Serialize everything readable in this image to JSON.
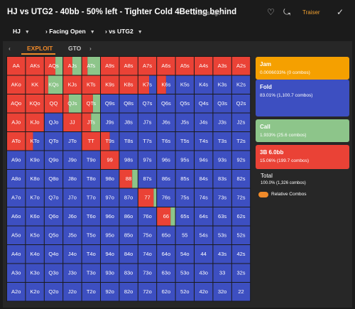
{
  "header": {
    "title": "HJ vs UTG2 - 40bb - 50% left - Tighter Cold 4Betting behind",
    "time": "2 days ago",
    "user_button": "Traiser"
  },
  "breadcrumb": [
    "HJ",
    "Facing Open",
    "vs UTG2"
  ],
  "tabs": [
    "EXPLOIT",
    "GTO"
  ],
  "grid": {
    "hands": [
      [
        "AA",
        "AKs",
        "AQs",
        "AJs",
        "ATs",
        "A9s",
        "A8s",
        "A7s",
        "A6s",
        "A5s",
        "A4s",
        "A3s",
        "A2s"
      ],
      [
        "AKo",
        "KK",
        "KQs",
        "KJs",
        "KTs",
        "K9s",
        "K8s",
        "K7s",
        "K6s",
        "K5s",
        "K4s",
        "K3s",
        "K2s"
      ],
      [
        "AQo",
        "KQo",
        "QQ",
        "QJs",
        "QTs",
        "Q9s",
        "Q8s",
        "Q7s",
        "Q6s",
        "Q5s",
        "Q4s",
        "Q3s",
        "Q2s"
      ],
      [
        "AJo",
        "KJo",
        "QJo",
        "JJ",
        "JTs",
        "J9s",
        "J8s",
        "J7s",
        "J6s",
        "J5s",
        "J4s",
        "J3s",
        "J2s"
      ],
      [
        "ATo",
        "KTo",
        "QTo",
        "JTo",
        "TT",
        "T9s",
        "T8s",
        "T7s",
        "T6s",
        "T5s",
        "T4s",
        "T3s",
        "T2s"
      ],
      [
        "A9o",
        "K9o",
        "Q9o",
        "J9o",
        "T9o",
        "99",
        "98s",
        "97s",
        "96s",
        "95s",
        "94s",
        "93s",
        "92s"
      ],
      [
        "A8o",
        "K8o",
        "Q8o",
        "J8o",
        "T8o",
        "98o",
        "88",
        "87s",
        "86s",
        "85s",
        "84s",
        "83s",
        "82s"
      ],
      [
        "A7o",
        "K7o",
        "Q7o",
        "J7o",
        "T7o",
        "97o",
        "87o",
        "77",
        "76s",
        "75s",
        "74s",
        "73s",
        "72s"
      ],
      [
        "A6o",
        "K6o",
        "Q6o",
        "J6o",
        "T6o",
        "96o",
        "86o",
        "76o",
        "66",
        "65s",
        "64s",
        "63s",
        "62s"
      ],
      [
        "A5o",
        "K5o",
        "Q5o",
        "J5o",
        "T5o",
        "95o",
        "85o",
        "75o",
        "65o",
        "55",
        "54s",
        "53s",
        "52s"
      ],
      [
        "A4o",
        "K4o",
        "Q4o",
        "J4o",
        "T4o",
        "94o",
        "84o",
        "74o",
        "64o",
        "54o",
        "44",
        "43s",
        "42s"
      ],
      [
        "A3o",
        "K3o",
        "Q3o",
        "J3o",
        "T3o",
        "93o",
        "83o",
        "73o",
        "63o",
        "53o",
        "43o",
        "33",
        "32s"
      ],
      [
        "A2o",
        "K2o",
        "Q2o",
        "J2o",
        "T2o",
        "92o",
        "82o",
        "72o",
        "62o",
        "52o",
        "42o",
        "32o",
        "22"
      ]
    ],
    "raise": [
      [
        100,
        100,
        60,
        50,
        30,
        100,
        100,
        100,
        100,
        100,
        100,
        100,
        100
      ],
      [
        100,
        100,
        20,
        100,
        100,
        100,
        100,
        60,
        50,
        0,
        0,
        0,
        0
      ],
      [
        100,
        100,
        100,
        30,
        60,
        0,
        0,
        0,
        0,
        0,
        0,
        0,
        0
      ],
      [
        100,
        100,
        0,
        100,
        50,
        0,
        0,
        0,
        0,
        0,
        0,
        0,
        0
      ],
      [
        100,
        40,
        0,
        0,
        100,
        50,
        0,
        0,
        0,
        0,
        0,
        0,
        0
      ],
      [
        0,
        0,
        0,
        0,
        0,
        100,
        0,
        0,
        0,
        0,
        0,
        0,
        0
      ],
      [
        0,
        0,
        0,
        0,
        0,
        0,
        70,
        0,
        0,
        0,
        0,
        0,
        0
      ],
      [
        0,
        0,
        0,
        0,
        0,
        0,
        0,
        85,
        0,
        0,
        0,
        0,
        0
      ],
      [
        0,
        0,
        0,
        0,
        0,
        0,
        0,
        0,
        75,
        0,
        0,
        0,
        0
      ],
      [
        0,
        0,
        0,
        0,
        0,
        0,
        0,
        0,
        0,
        0,
        0,
        0,
        0
      ],
      [
        0,
        0,
        0,
        0,
        0,
        0,
        0,
        0,
        0,
        0,
        0,
        0,
        0
      ],
      [
        0,
        0,
        0,
        0,
        0,
        0,
        0,
        0,
        0,
        0,
        0,
        0,
        0
      ],
      [
        0,
        0,
        0,
        0,
        0,
        0,
        0,
        0,
        0,
        0,
        0,
        0,
        0
      ]
    ],
    "call": [
      [
        0,
        0,
        40,
        50,
        70,
        0,
        0,
        0,
        0,
        0,
        0,
        0,
        0
      ],
      [
        0,
        0,
        80,
        0,
        0,
        0,
        0,
        0,
        0,
        0,
        0,
        0,
        0
      ],
      [
        0,
        0,
        0,
        70,
        40,
        0,
        0,
        0,
        0,
        0,
        0,
        0,
        0
      ],
      [
        0,
        0,
        0,
        0,
        50,
        0,
        0,
        0,
        0,
        0,
        0,
        0,
        0
      ],
      [
        0,
        0,
        0,
        0,
        0,
        0,
        0,
        0,
        0,
        0,
        0,
        0,
        0
      ],
      [
        0,
        0,
        0,
        0,
        0,
        0,
        0,
        0,
        0,
        0,
        0,
        0,
        0
      ],
      [
        0,
        0,
        0,
        0,
        0,
        0,
        30,
        0,
        0,
        0,
        0,
        0,
        0
      ],
      [
        0,
        0,
        0,
        0,
        0,
        0,
        0,
        15,
        0,
        0,
        0,
        0,
        0
      ],
      [
        0,
        0,
        0,
        0,
        0,
        0,
        0,
        0,
        25,
        0,
        0,
        0,
        0
      ],
      [
        0,
        0,
        0,
        0,
        0,
        0,
        0,
        0,
        0,
        0,
        0,
        0,
        0
      ],
      [
        0,
        0,
        0,
        0,
        0,
        0,
        0,
        0,
        0,
        0,
        0,
        0,
        0
      ],
      [
        0,
        0,
        0,
        0,
        0,
        0,
        0,
        0,
        0,
        0,
        0,
        0,
        0
      ],
      [
        0,
        0,
        0,
        0,
        0,
        0,
        0,
        0,
        0,
        0,
        0,
        0,
        0
      ]
    ],
    "fold": [
      [
        0,
        0,
        0,
        0,
        0,
        0,
        0,
        0,
        0,
        0,
        0,
        0,
        0
      ],
      [
        0,
        0,
        0,
        0,
        0,
        0,
        0,
        40,
        50,
        100,
        100,
        100,
        100
      ],
      [
        0,
        0,
        0,
        0,
        0,
        100,
        100,
        100,
        100,
        100,
        100,
        100,
        100
      ],
      [
        0,
        0,
        100,
        0,
        0,
        100,
        100,
        100,
        100,
        100,
        100,
        100,
        100
      ],
      [
        0,
        60,
        100,
        100,
        0,
        50,
        100,
        100,
        100,
        100,
        100,
        100,
        100
      ],
      [
        100,
        100,
        100,
        100,
        100,
        0,
        100,
        100,
        100,
        100,
        100,
        100,
        100
      ],
      [
        100,
        100,
        100,
        100,
        100,
        100,
        0,
        100,
        100,
        100,
        100,
        100,
        100
      ],
      [
        100,
        100,
        100,
        100,
        100,
        100,
        100,
        0,
        100,
        100,
        100,
        100,
        100
      ],
      [
        100,
        100,
        100,
        100,
        100,
        100,
        100,
        100,
        0,
        100,
        100,
        100,
        100
      ],
      [
        100,
        100,
        100,
        100,
        100,
        100,
        100,
        100,
        100,
        100,
        100,
        100,
        100
      ],
      [
        100,
        100,
        100,
        100,
        100,
        100,
        100,
        100,
        100,
        100,
        100,
        100,
        100
      ],
      [
        100,
        100,
        100,
        100,
        100,
        100,
        100,
        100,
        100,
        100,
        100,
        100,
        100
      ],
      [
        100,
        100,
        100,
        100,
        100,
        100,
        100,
        100,
        100,
        100,
        100,
        100,
        100
      ]
    ]
  },
  "legend": [
    {
      "name": "Jam",
      "detail": "0.0006033% (0 combos)",
      "color": "#f5a000"
    },
    {
      "name": "Fold",
      "detail": "83.01% (1,100.7 combos)",
      "color": "#3d4fc1"
    },
    {
      "name": "Call",
      "detail": "1.933% (25.6 combos)",
      "color": "#8dc58a"
    },
    {
      "name": "3B 6.0bb",
      "detail": "15.06% (199.7 combos)",
      "color": "#ea4236"
    }
  ],
  "total": {
    "label": "Total",
    "detail": "100.0% (1,326 combos)"
  },
  "toggle": "Relative Combos"
}
